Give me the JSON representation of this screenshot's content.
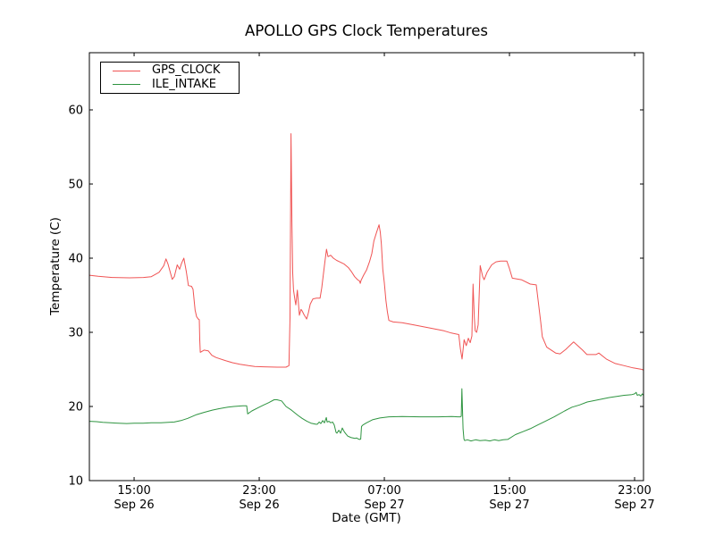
{
  "figure": {
    "background": "#ffffff",
    "frame_color": "#000000"
  },
  "chart_data": {
    "type": "line",
    "title": "APOLLO GPS Clock Temperatures",
    "xlabel": "Date (GMT)",
    "ylabel": "Temperature (C)",
    "x_unit": "hours since Sep 26 00:00 GMT",
    "xlim": [
      12.14,
      47.57
    ],
    "ylim": [
      10,
      67.71
    ],
    "grid": false,
    "legend_position": "upper left",
    "yticks": [
      10,
      20,
      30,
      40,
      50,
      60
    ],
    "xticks": [
      {
        "h": 15,
        "time": "15:00",
        "date": "Sep 26"
      },
      {
        "h": 23,
        "time": "23:00",
        "date": "Sep 26"
      },
      {
        "h": 31,
        "time": "07:00",
        "date": "Sep 27"
      },
      {
        "h": 39,
        "time": "15:00",
        "date": "Sep 27"
      },
      {
        "h": 47,
        "time": "23:00",
        "date": "Sep 27"
      }
    ],
    "series": [
      {
        "name": "GPS_CLOCK",
        "color": "#f05454",
        "points": [
          [
            12.14,
            37.7
          ],
          [
            12.7,
            37.55
          ],
          [
            13.6,
            37.4
          ],
          [
            14.7,
            37.35
          ],
          [
            15.6,
            37.4
          ],
          [
            16.1,
            37.5
          ],
          [
            16.6,
            38.1
          ],
          [
            16.9,
            39.0
          ],
          [
            17.04,
            39.9
          ],
          [
            17.17,
            39.2
          ],
          [
            17.44,
            37.15
          ],
          [
            17.57,
            37.5
          ],
          [
            17.76,
            39.1
          ],
          [
            17.91,
            38.5
          ],
          [
            18.03,
            39.3
          ],
          [
            18.18,
            40.0
          ],
          [
            18.33,
            38.3
          ],
          [
            18.47,
            36.3
          ],
          [
            18.67,
            36.2
          ],
          [
            18.77,
            35.8
          ],
          [
            18.9,
            33.0
          ],
          [
            19.0,
            32.1
          ],
          [
            19.1,
            31.8
          ],
          [
            19.17,
            31.7
          ],
          [
            19.2,
            29.0
          ],
          [
            19.23,
            27.3
          ],
          [
            19.47,
            27.6
          ],
          [
            19.74,
            27.5
          ],
          [
            19.97,
            26.9
          ],
          [
            20.24,
            26.6
          ],
          [
            20.81,
            26.2
          ],
          [
            21.29,
            25.9
          ],
          [
            21.76,
            25.7
          ],
          [
            22.31,
            25.5
          ],
          [
            22.71,
            25.4
          ],
          [
            23.29,
            25.35
          ],
          [
            24.14,
            25.3
          ],
          [
            24.71,
            25.3
          ],
          [
            24.9,
            25.5
          ],
          [
            24.97,
            32.0
          ],
          [
            25.03,
            56.8
          ],
          [
            25.09,
            45.0
          ],
          [
            25.14,
            38.0
          ],
          [
            25.19,
            35.7
          ],
          [
            25.29,
            34.3
          ],
          [
            25.34,
            33.7
          ],
          [
            25.44,
            35.7
          ],
          [
            25.57,
            32.3
          ],
          [
            25.67,
            33.1
          ],
          [
            25.74,
            32.9
          ],
          [
            25.86,
            32.4
          ],
          [
            26.03,
            31.8
          ],
          [
            26.14,
            32.6
          ],
          [
            26.26,
            33.8
          ],
          [
            26.43,
            34.5
          ],
          [
            26.66,
            34.6
          ],
          [
            26.89,
            34.6
          ],
          [
            27.0,
            36.0
          ],
          [
            27.17,
            39.0
          ],
          [
            27.3,
            41.2
          ],
          [
            27.4,
            40.2
          ],
          [
            27.57,
            40.4
          ],
          [
            27.74,
            40.0
          ],
          [
            27.95,
            39.7
          ],
          [
            28.14,
            39.5
          ],
          [
            28.43,
            39.2
          ],
          [
            28.71,
            38.7
          ],
          [
            28.89,
            38.2
          ],
          [
            29.1,
            37.5
          ],
          [
            29.29,
            37.1
          ],
          [
            29.42,
            36.9
          ],
          [
            29.46,
            36.6
          ],
          [
            29.51,
            37.0
          ],
          [
            29.67,
            37.7
          ],
          [
            29.86,
            38.4
          ],
          [
            30.05,
            39.5
          ],
          [
            30.2,
            40.6
          ],
          [
            30.33,
            42.3
          ],
          [
            30.49,
            43.4
          ],
          [
            30.66,
            44.5
          ],
          [
            30.74,
            43.5
          ],
          [
            30.81,
            41.9
          ],
          [
            30.9,
            38.5
          ],
          [
            31.0,
            36.7
          ],
          [
            31.1,
            34.3
          ],
          [
            31.19,
            32.8
          ],
          [
            31.29,
            31.6
          ],
          [
            31.57,
            31.4
          ],
          [
            32.14,
            31.3
          ],
          [
            32.9,
            31.0
          ],
          [
            33.86,
            30.6
          ],
          [
            34.81,
            30.2
          ],
          [
            35.29,
            29.9
          ],
          [
            35.76,
            29.7
          ],
          [
            35.86,
            27.8
          ],
          [
            35.97,
            26.4
          ],
          [
            36.1,
            29.0
          ],
          [
            36.24,
            28.2
          ],
          [
            36.37,
            29.2
          ],
          [
            36.49,
            28.6
          ],
          [
            36.6,
            29.5
          ],
          [
            36.67,
            36.5
          ],
          [
            36.75,
            32.0
          ],
          [
            36.81,
            30.2
          ],
          [
            36.9,
            30.0
          ],
          [
            37.0,
            31.0
          ],
          [
            37.13,
            39.0
          ],
          [
            37.29,
            37.5
          ],
          [
            37.38,
            37.1
          ],
          [
            37.57,
            38.1
          ],
          [
            37.86,
            39.1
          ],
          [
            38.14,
            39.5
          ],
          [
            38.43,
            39.6
          ],
          [
            38.83,
            39.6
          ],
          [
            39.0,
            38.6
          ],
          [
            39.18,
            37.3
          ],
          [
            39.76,
            37.1
          ],
          [
            40.33,
            36.5
          ],
          [
            40.71,
            36.4
          ],
          [
            40.81,
            34.7
          ],
          [
            41.0,
            31.4
          ],
          [
            41.1,
            29.4
          ],
          [
            41.38,
            28.0
          ],
          [
            41.95,
            27.2
          ],
          [
            42.24,
            27.1
          ],
          [
            42.6,
            27.7
          ],
          [
            43.1,
            28.7
          ],
          [
            43.67,
            27.6
          ],
          [
            43.95,
            27.0
          ],
          [
            44.53,
            27.0
          ],
          [
            44.71,
            27.2
          ],
          [
            45.19,
            26.4
          ],
          [
            45.76,
            25.8
          ],
          [
            46.33,
            25.5
          ],
          [
            46.9,
            25.2
          ],
          [
            47.47,
            25.0
          ],
          [
            47.57,
            24.9
          ]
        ]
      },
      {
        "name": "ILE_INTAKE",
        "color": "#2e9440",
        "points": [
          [
            12.14,
            18.0
          ],
          [
            12.6,
            17.95
          ],
          [
            13.0,
            17.85
          ],
          [
            13.5,
            17.8
          ],
          [
            14.0,
            17.75
          ],
          [
            14.53,
            17.7
          ],
          [
            15.0,
            17.75
          ],
          [
            15.57,
            17.75
          ],
          [
            16.1,
            17.8
          ],
          [
            16.71,
            17.8
          ],
          [
            17.2,
            17.85
          ],
          [
            17.57,
            17.9
          ],
          [
            18.0,
            18.1
          ],
          [
            18.43,
            18.4
          ],
          [
            19.0,
            18.9
          ],
          [
            19.47,
            19.2
          ],
          [
            20.0,
            19.5
          ],
          [
            20.43,
            19.7
          ],
          [
            21.0,
            19.9
          ],
          [
            21.38,
            20.0
          ],
          [
            21.95,
            20.1
          ],
          [
            22.2,
            20.1
          ],
          [
            22.26,
            19.0
          ],
          [
            22.53,
            19.4
          ],
          [
            23.0,
            19.9
          ],
          [
            23.29,
            20.2
          ],
          [
            23.6,
            20.5
          ],
          [
            23.95,
            20.9
          ],
          [
            24.14,
            20.9
          ],
          [
            24.43,
            20.75
          ],
          [
            24.71,
            20.0
          ],
          [
            25.06,
            19.5
          ],
          [
            25.48,
            18.8
          ],
          [
            25.74,
            18.4
          ],
          [
            26.05,
            18.0
          ],
          [
            26.31,
            17.75
          ],
          [
            26.62,
            17.6
          ],
          [
            26.71,
            17.6
          ],
          [
            26.83,
            17.9
          ],
          [
            26.94,
            17.7
          ],
          [
            27.06,
            18.1
          ],
          [
            27.17,
            17.8
          ],
          [
            27.29,
            18.5
          ],
          [
            27.34,
            17.9
          ],
          [
            27.46,
            18.0
          ],
          [
            27.57,
            17.8
          ],
          [
            27.69,
            17.9
          ],
          [
            27.8,
            17.5
          ],
          [
            27.91,
            16.5
          ],
          [
            27.97,
            16.4
          ],
          [
            28.09,
            16.8
          ],
          [
            28.2,
            16.4
          ],
          [
            28.31,
            17.1
          ],
          [
            28.43,
            16.6
          ],
          [
            28.54,
            16.3
          ],
          [
            28.66,
            16.0
          ],
          [
            28.77,
            15.9
          ],
          [
            28.89,
            15.8
          ],
          [
            29.0,
            15.75
          ],
          [
            29.11,
            15.7
          ],
          [
            29.23,
            15.75
          ],
          [
            29.34,
            15.6
          ],
          [
            29.43,
            15.55
          ],
          [
            29.49,
            15.6
          ],
          [
            29.54,
            17.3
          ],
          [
            29.63,
            17.5
          ],
          [
            29.86,
            17.8
          ],
          [
            30.24,
            18.2
          ],
          [
            30.71,
            18.45
          ],
          [
            31.29,
            18.6
          ],
          [
            32.14,
            18.65
          ],
          [
            33.29,
            18.6
          ],
          [
            34.43,
            18.6
          ],
          [
            35.29,
            18.65
          ],
          [
            35.69,
            18.6
          ],
          [
            35.86,
            18.6
          ],
          [
            35.92,
            18.7
          ],
          [
            35.96,
            22.4
          ],
          [
            36.03,
            17.0
          ],
          [
            36.09,
            15.6
          ],
          [
            36.14,
            15.4
          ],
          [
            36.31,
            15.5
          ],
          [
            36.54,
            15.35
          ],
          [
            36.83,
            15.5
          ],
          [
            37.11,
            15.4
          ],
          [
            37.46,
            15.45
          ],
          [
            37.74,
            15.35
          ],
          [
            38.03,
            15.5
          ],
          [
            38.31,
            15.4
          ],
          [
            38.6,
            15.5
          ],
          [
            38.89,
            15.55
          ],
          [
            39.38,
            16.2
          ],
          [
            39.86,
            16.6
          ],
          [
            40.33,
            17.0
          ],
          [
            40.81,
            17.5
          ],
          [
            41.29,
            18.0
          ],
          [
            41.86,
            18.6
          ],
          [
            42.53,
            19.4
          ],
          [
            43.0,
            19.9
          ],
          [
            43.48,
            20.2
          ],
          [
            43.97,
            20.6
          ],
          [
            44.43,
            20.8
          ],
          [
            44.89,
            21.0
          ],
          [
            45.38,
            21.2
          ],
          [
            45.86,
            21.35
          ],
          [
            46.33,
            21.5
          ],
          [
            46.6,
            21.55
          ],
          [
            46.83,
            21.6
          ],
          [
            47.0,
            21.7
          ],
          [
            47.1,
            21.9
          ],
          [
            47.17,
            21.5
          ],
          [
            47.29,
            21.6
          ],
          [
            47.4,
            21.4
          ],
          [
            47.49,
            21.7
          ],
          [
            47.57,
            21.5
          ]
        ]
      }
    ]
  }
}
